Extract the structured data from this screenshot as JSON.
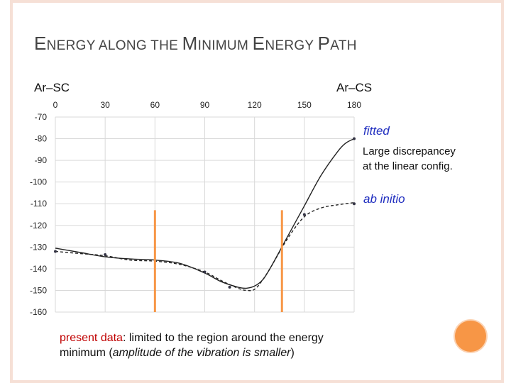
{
  "slide": {
    "title_parts": [
      {
        "text": "E",
        "size": "cap"
      },
      {
        "text": "NERGY ALONG THE ",
        "size": "sm"
      },
      {
        "text": "M",
        "size": "cap"
      },
      {
        "text": "INIMUM ",
        "size": "sm"
      },
      {
        "text": "E",
        "size": "cap"
      },
      {
        "text": "NERGY ",
        "size": "sm"
      },
      {
        "text": "P",
        "size": "cap"
      },
      {
        "text": "ATH",
        "size": "sm"
      }
    ],
    "left_end_label": "Ar–SC",
    "right_end_label": "Ar–CS",
    "annotations": {
      "fitted": "fitted",
      "discrepancy_line1": "Large discrepancey",
      "discrepancy_line2": "at the linear config.",
      "ab_initio": "ab initio"
    },
    "note": {
      "highlight": "present data",
      "rest_line1": ": limited to the region around the energy",
      "line2_start": "minimum (",
      "line2_italic": "amplitude of the vibration is smaller",
      "line2_end": ")"
    },
    "colors": {
      "title": "#444444",
      "annotation_blue": "#1f2dbf",
      "marker_orange": "#f79646",
      "highlight_red": "#c00000",
      "grid": "#d9d9d9"
    }
  },
  "chart_data": {
    "type": "line",
    "x_ticks": [
      0,
      30,
      60,
      90,
      120,
      150,
      180
    ],
    "y_ticks": [
      -70,
      -80,
      -90,
      -100,
      -110,
      -120,
      -130,
      -140,
      -150,
      -160
    ],
    "xlim": [
      0,
      180
    ],
    "ylim": [
      -160,
      -70
    ],
    "series": [
      {
        "name": "fitted",
        "style": "solid",
        "x": [
          0,
          15,
          30,
          45,
          60,
          75,
          90,
          100,
          110,
          115,
          120,
          125,
          130,
          140,
          150,
          160,
          170,
          175,
          180
        ],
        "y": [
          -130.5,
          -132.5,
          -134.5,
          -135.5,
          -136,
          -137.5,
          -142,
          -146,
          -148.5,
          -149,
          -148,
          -145,
          -139,
          -125,
          -111,
          -97,
          -86,
          -82,
          -80
        ]
      },
      {
        "name": "ab initio",
        "style": "dashed",
        "x": [
          0,
          15,
          30,
          45,
          60,
          75,
          90,
          100,
          110,
          115,
          120,
          125,
          130,
          140,
          150,
          160,
          170,
          180
        ],
        "y": [
          -132,
          -133,
          -134,
          -136,
          -136.5,
          -138,
          -141.5,
          -145.5,
          -149,
          -150,
          -149.5,
          -145,
          -139,
          -126,
          -116,
          -112,
          -110.5,
          -109.5
        ]
      }
    ],
    "markers": [
      {
        "name": "ab initio points",
        "x": [
          0,
          30,
          90,
          105,
          150,
          180
        ],
        "y": [
          -132,
          -133.5,
          -141.5,
          -148.5,
          -115,
          -110
        ]
      },
      {
        "name": "fitted end point",
        "x": [
          180
        ],
        "y": [
          -80
        ]
      }
    ],
    "region_lines_x": [
      60,
      136.5
    ],
    "region_lines_y_range": [
      -160,
      -113
    ]
  }
}
